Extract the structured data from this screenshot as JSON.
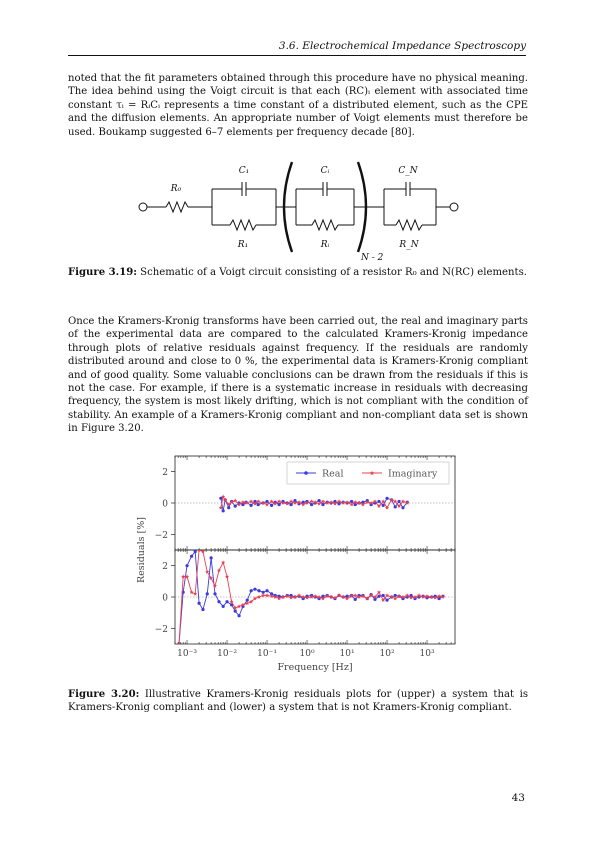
{
  "header": {
    "running_title": "3.6.  Electrochemical Impedance Spectroscopy"
  },
  "paragraph1": "noted that the fit parameters obtained through this procedure have no physical meaning. The idea behind using the Voigt circuit is that each (RC)ᵢ element with associated time constant τᵢ = RᵢCᵢ represents a time constant of a distributed element, such as the CPE and the diffusion elements. An appropriate number of Voigt elements must therefore be used. Boukamp suggested 6–7 elements per frequency decade [80].",
  "circuit": {
    "labels": {
      "r0": "R₀",
      "c1": "C₁",
      "ci": "Cᵢ",
      "cn": "C_N",
      "r1": "R₁",
      "ri": "Rᵢ",
      "rn": "R_N",
      "exponent": "N - 2"
    }
  },
  "figure_3_19": {
    "label": "Figure 3.19:",
    "text": " Schematic of a Voigt circuit consisting of a resistor R₀ and N(RC) elements."
  },
  "paragraph2": "Once the Kramers-Kronig transforms have been carried out, the real and imaginary parts of the experimental data are compared to the calculated Kramers-Kronig impedance through plots of relative residuals against frequency. If the residuals are randomly distributed around and close to 0 %, the experimental data is Kramers-Kronig compliant and of good quality. Some valuable conclusions can be drawn from the residuals if this is not the case. For example, if there is a systematic increase in residuals with decreasing frequency, the system is most likely drifting, which is not compliant with the condition of stability. An example of a Kramers-Kronig compliant and non-compliant data set is shown in Figure 3.20.",
  "chart_data": [
    {
      "type": "line",
      "panel": "upper",
      "xscale": "log",
      "xlim": [
        0.0005,
        5000
      ],
      "ylim": [
        -3,
        3
      ],
      "yticks": [
        -2,
        0,
        2
      ],
      "grid": false,
      "legend": {
        "placement": "top-right",
        "entries": [
          "Real",
          "Imaginary"
        ]
      },
      "series": [
        {
          "name": "Real",
          "color": "#3b3bdd",
          "x": [
            0.007,
            0.008,
            0.009,
            0.011,
            0.013,
            0.016,
            0.02,
            0.025,
            0.03,
            0.04,
            0.05,
            0.06,
            0.08,
            0.1,
            0.13,
            0.16,
            0.2,
            0.25,
            0.32,
            0.4,
            0.5,
            0.63,
            0.8,
            1,
            1.3,
            1.6,
            2,
            2.5,
            3.2,
            4,
            5,
            6.3,
            8,
            10,
            13,
            16,
            20,
            25,
            32,
            40,
            50,
            63,
            80,
            100,
            130,
            160,
            200,
            250,
            320
          ],
          "y": [
            0.3,
            -0.5,
            0.2,
            -0.3,
            0.1,
            -0.2,
            0,
            -0.1,
            0.05,
            -0.15,
            0.1,
            -0.1,
            0,
            0.1,
            -0.15,
            0.05,
            -0.1,
            0.1,
            0,
            -0.1,
            0.15,
            -0.05,
            0.05,
            0.1,
            -0.1,
            0,
            0.15,
            -0.1,
            0.05,
            0,
            0.1,
            -0.05,
            0.05,
            0,
            0.1,
            -0.1,
            0,
            0.05,
            0.15,
            -0.1,
            0,
            0.1,
            -0.15,
            0.3,
            0.2,
            -0.25,
            0.1,
            -0.3,
            0.05
          ]
        },
        {
          "name": "Imaginary",
          "color": "#e8404f",
          "x": [
            0.007,
            0.008,
            0.009,
            0.011,
            0.013,
            0.016,
            0.02,
            0.025,
            0.03,
            0.04,
            0.05,
            0.06,
            0.08,
            0.1,
            0.13,
            0.16,
            0.2,
            0.25,
            0.32,
            0.4,
            0.5,
            0.63,
            0.8,
            1,
            1.3,
            1.6,
            2,
            2.5,
            3.2,
            4,
            5,
            6.3,
            8,
            10,
            13,
            16,
            20,
            25,
            32,
            40,
            50,
            63,
            80,
            100,
            130,
            160,
            200,
            250,
            320
          ],
          "y": [
            -0.3,
            0.4,
            0.2,
            -0.1,
            0.05,
            0.15,
            -0.1,
            0.05,
            0,
            0.1,
            -0.05,
            0.1,
            0,
            -0.1,
            0.1,
            -0.05,
            0.1,
            0,
            -0.05,
            0.1,
            0,
            0.05,
            -0.1,
            0,
            0.1,
            0.05,
            -0.05,
            0.1,
            0,
            0.05,
            -0.05,
            0.1,
            0,
            0.05,
            -0.1,
            0.05,
            0,
            -0.1,
            0.05,
            0,
            0.1,
            -0.2,
            0.1,
            -0.3,
            0.2,
            0.1,
            -0.2,
            0.1,
            0
          ]
        }
      ]
    },
    {
      "type": "line",
      "panel": "lower",
      "xscale": "log",
      "xlim": [
        0.0005,
        5000
      ],
      "ylim": [
        -3,
        3
      ],
      "yticks": [
        -2,
        0,
        2
      ],
      "xtick_labels": [
        "10⁻³",
        "10⁻²",
        "10⁻¹",
        "10⁰",
        "10¹",
        "10²",
        "10³"
      ],
      "xlabel": "Frequency [Hz]",
      "ylabel": "Residuals [%]",
      "grid": false,
      "series": [
        {
          "name": "Real",
          "color": "#3b3bdd",
          "x": [
            0.00063,
            0.0008,
            0.001,
            0.0013,
            0.0016,
            0.002,
            0.0025,
            0.0032,
            0.004,
            0.005,
            0.0063,
            0.008,
            0.01,
            0.013,
            0.016,
            0.02,
            0.025,
            0.032,
            0.04,
            0.05,
            0.063,
            0.08,
            0.1,
            0.13,
            0.16,
            0.2,
            0.25,
            0.32,
            0.4,
            0.5,
            0.63,
            0.8,
            1,
            1.3,
            1.6,
            2,
            2.5,
            3.2,
            4,
            5,
            6.3,
            8,
            10,
            13,
            16,
            20,
            25,
            32,
            40,
            50,
            63,
            80,
            100,
            130,
            160,
            200,
            250,
            320,
            400,
            500,
            630,
            800,
            1000,
            1300,
            1600,
            2000,
            2500
          ],
          "y": [
            -3,
            0.3,
            2,
            2.6,
            2.9,
            -0.4,
            -0.8,
            0.2,
            2.5,
            0.2,
            -0.3,
            -0.6,
            -0.3,
            -0.5,
            -0.9,
            -1.2,
            -0.6,
            -0.2,
            0.4,
            0.5,
            0.4,
            0.3,
            0.4,
            0.2,
            0.1,
            0.05,
            0,
            0.1,
            0.1,
            0,
            0.05,
            -0.1,
            0.05,
            0.1,
            0,
            -0.1,
            0.05,
            0.1,
            0,
            -0.1,
            0.1,
            0,
            0.05,
            0.1,
            -0.15,
            0.1,
            0.1,
            -0.1,
            0.15,
            -0.15,
            0.05,
            0.1,
            -0.2,
            0,
            0.1,
            0.05,
            -0.1,
            0,
            0.1,
            -0.1,
            0,
            0.05,
            -0.05,
            0,
            0.05,
            -0.1,
            0.05
          ]
        },
        {
          "name": "Imaginary",
          "color": "#e8404f",
          "x": [
            0.00063,
            0.0008,
            0.001,
            0.0013,
            0.0016,
            0.002,
            0.0025,
            0.0032,
            0.004,
            0.005,
            0.0063,
            0.008,
            0.01,
            0.013,
            0.016,
            0.02,
            0.025,
            0.032,
            0.04,
            0.05,
            0.063,
            0.08,
            0.1,
            0.13,
            0.16,
            0.2,
            0.25,
            0.32,
            0.4,
            0.5,
            0.63,
            0.8,
            1,
            1.3,
            1.6,
            2,
            2.5,
            3.2,
            4,
            5,
            6.3,
            8,
            10,
            13,
            16,
            20,
            25,
            32,
            40,
            50,
            63,
            80,
            100,
            130,
            160,
            200,
            250,
            320,
            400,
            500,
            630,
            800,
            1000,
            1300,
            1600,
            2000,
            2500
          ],
          "y": [
            -3,
            1.3,
            1.3,
            0.3,
            0.2,
            3,
            2.9,
            1.6,
            1.2,
            0.7,
            1.7,
            2.2,
            1.3,
            -0.3,
            -0.7,
            -0.6,
            -0.5,
            -0.4,
            -0.3,
            -0.1,
            0,
            0.1,
            0.1,
            0.05,
            0,
            -0.1,
            0,
            0.05,
            -0.05,
            0,
            0.1,
            0,
            -0.05,
            0,
            0.05,
            0,
            -0.1,
            0.05,
            0,
            -0.05,
            0.1,
            0,
            -0.1,
            0.05,
            0.1,
            0,
            0.05,
            -0.1,
            0.1,
            0,
            0.3,
            -0.2,
            0.1,
            0,
            -0.1,
            0.05,
            0,
            0.1,
            -0.05,
            0,
            0.1,
            0,
            0.05,
            0,
            -0.05,
            0.05,
            0
          ]
        }
      ]
    }
  ],
  "figure_3_20": {
    "label": "Figure 3.20:",
    "text": " Illustrative Kramers-Kronig residuals plots for (upper) a system that is Kramers-Kronig compliant and (lower) a system that is not Kramers-Kronig compliant."
  },
  "page_number": "43"
}
